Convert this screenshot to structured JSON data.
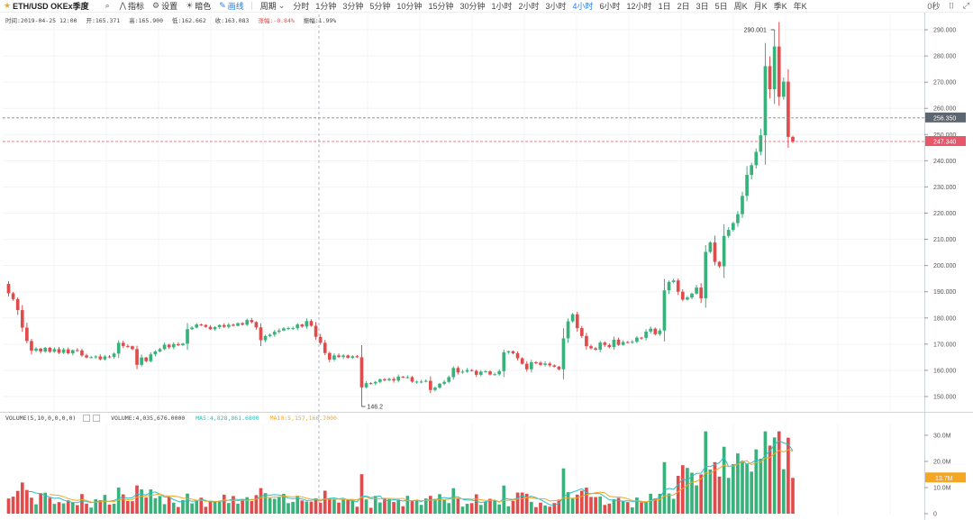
{
  "toolbar": {
    "symbol": "ETH/USD OKEx季度",
    "indicator": "指标",
    "settings": "设置",
    "theme": "暗色",
    "draw": "画线",
    "period": "周期",
    "timeframes": [
      "分时",
      "1分钟",
      "3分钟",
      "5分钟",
      "10分钟",
      "15分钟",
      "30分钟",
      "1小时",
      "2小时",
      "3小时",
      "4小时",
      "6小时",
      "12小时",
      "1日",
      "2日",
      "3日",
      "5日",
      "周K",
      "月K",
      "季K",
      "年K"
    ],
    "active_timeframe": "4小时",
    "right_label": "0秒"
  },
  "ohlc_bar": {
    "time": "时间:2019-04-25 12:00",
    "open": "开:165.371",
    "high": "高:165.900",
    "low": "低:162.662",
    "close": "收:163.083",
    "change": "涨幅:-0.84%",
    "amplitude": "振幅:1.99%"
  },
  "volume_legend": {
    "title": "VOLUME(5,10,0,0,0,0)",
    "volume": "VOLUME:4,035,676.0000",
    "ma5": "MA5:4,828,861.6800",
    "ma10": "MA10:5,157,166.7000"
  },
  "colors": {
    "up": "#38b27a",
    "down": "#e04b4b",
    "ma5": "#29c1c3",
    "ma10": "#f5a623",
    "tag_gray": "#5b6670",
    "tag_red": "#e8566a",
    "tag_orange": "#f5a623",
    "accent": "#2d7be5"
  },
  "chart_data": {
    "type": "candlestick",
    "y_axis": {
      "min": 145,
      "max": 292,
      "ticks": [
        "290.000",
        "280.000",
        "270.000",
        "260.000",
        "250.000",
        "240.000",
        "230.000",
        "220.000",
        "210.000",
        "200.000",
        "190.000",
        "180.000",
        "170.000",
        "160.000",
        "150.000"
      ]
    },
    "annotations": {
      "high": "290.001",
      "low": "146.2",
      "line_gray": "256.350",
      "line_red": "247.340"
    },
    "volume_axis": {
      "ticks": [
        "30.0M",
        "20.0M",
        "10.0M",
        "0"
      ],
      "current": "13.7M"
    },
    "closes": [
      189.4,
      187.2,
      183.0,
      176.3,
      171.2,
      167.5,
      168.3,
      167.2,
      168.6,
      167.1,
      168.1,
      166.7,
      168.0,
      166.5,
      167.7,
      167.6,
      165.7,
      164.9,
      165.0,
      165.3,
      164.2,
      165.3,
      165.1,
      166.4,
      170.5,
      169.3,
      169.2,
      168.1,
      162.1,
      164.9,
      163.5,
      166.1,
      167.2,
      168.1,
      169.8,
      168.8,
      170.0,
      169.6,
      170.2,
      175.7,
      176.3,
      177.5,
      177.3,
      176.6,
      175.7,
      176.5,
      177.3,
      176.6,
      177.4,
      177.0,
      178.0,
      177.4,
      179.2,
      178.4,
      176.4,
      171.5,
      173.1,
      173.6,
      174.7,
      175.2,
      176.0,
      176.1,
      176.1,
      177.5,
      176.7,
      178.8,
      177.0,
      172.8,
      170.5,
      166.6,
      164.1,
      165.7,
      165.1,
      165.7,
      164.8,
      165.4,
      165.0,
      153.5,
      155.1,
      155.0,
      155.6,
      156.6,
      156.2,
      156.7,
      156.1,
      157.6,
      157.4,
      157.4,
      155.7,
      155.7,
      155.7,
      156.0,
      152.5,
      153.4,
      154.9,
      155.6,
      157.4,
      160.9,
      159.2,
      159.5,
      160.1,
      159.8,
      158.3,
      159.5,
      159.6,
      158.4,
      158.5,
      159.7,
      166.9,
      167.3,
      166.5,
      164.6,
      162.5,
      160.4,
      163.1,
      162.9,
      162.1,
      162.6,
      161.9,
      161.4,
      160.4,
      172.2,
      178.7,
      181.4,
      176.1,
      173.1,
      169.2,
      168.4,
      167.9,
      170.6,
      169.7,
      168.9,
      171.7,
      169.7,
      170.8,
      170.6,
      170.9,
      172.5,
      172.4,
      174.8,
      175.9,
      173.8,
      175.2,
      190.5,
      193.7,
      194.3,
      190.0,
      187.0,
      187.8,
      189.3,
      191.6,
      187.5,
      205.2,
      208.8,
      201.4,
      199.7,
      211.3,
      213.6,
      216.2,
      219.6,
      226.6,
      234.6,
      238.3,
      243.4,
      249.7,
      276.1,
      267.3,
      283.6,
      264.4,
      270.2,
      249.1,
      247.3
    ]
  }
}
